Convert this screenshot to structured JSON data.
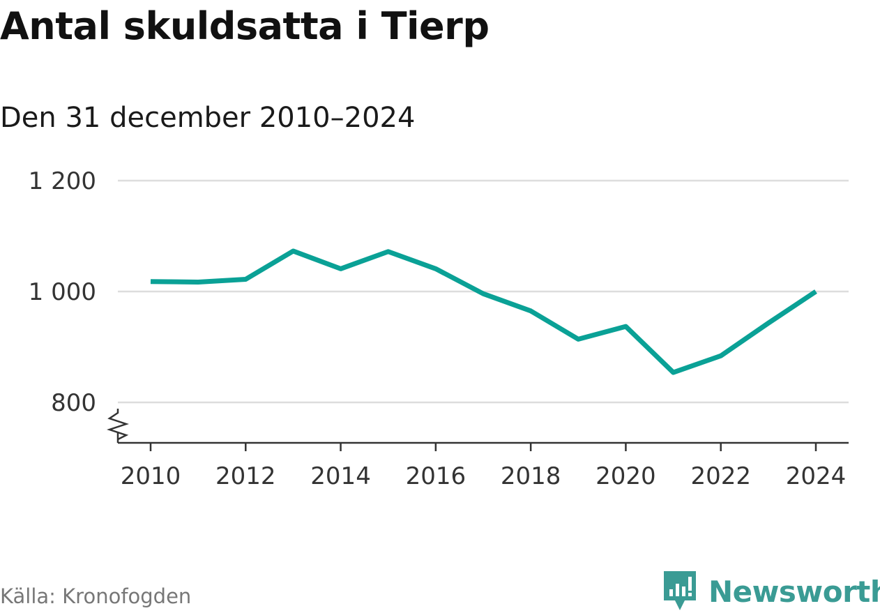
{
  "title": "Antal skuldsatta i Tierp",
  "subtitle": "Den 31 december 2010–2024",
  "source": "Källa: Kronofogden",
  "brand": {
    "name": "Newsworthy",
    "icon": "newsworthy-logo-icon",
    "color": "#3a9b94"
  },
  "colors": {
    "line": "#0aa196",
    "grid": "#dddddd",
    "axis": "#333333"
  },
  "chart_data": {
    "type": "line",
    "title": "Antal skuldsatta i Tierp",
    "subtitle": "Den 31 december 2010–2024",
    "xlabel": "",
    "ylabel": "",
    "x": [
      2010,
      2011,
      2012,
      2013,
      2014,
      2015,
      2016,
      2017,
      2018,
      2019,
      2020,
      2021,
      2022,
      2023,
      2024
    ],
    "series": [
      {
        "name": "Antal skuldsatta",
        "values": [
          1018,
          1017,
          1022,
          1073,
          1041,
          1072,
          1041,
          996,
          965,
          914,
          937,
          854,
          884,
          943,
          1000
        ]
      }
    ],
    "ylim": [
      800,
      1200
    ],
    "xlim": [
      2010,
      2024
    ],
    "yticks": [
      800,
      1000,
      1200
    ],
    "ytick_labels": [
      "800",
      "1 000",
      "1 200"
    ],
    "xticks": [
      2010,
      2012,
      2014,
      2016,
      2018,
      2020,
      2022,
      2024
    ],
    "xtick_labels": [
      "2010",
      "2012",
      "2014",
      "2016",
      "2018",
      "2020",
      "2022",
      "2024"
    ],
    "y_axis_break": true,
    "grid": true,
    "legend": "none"
  }
}
